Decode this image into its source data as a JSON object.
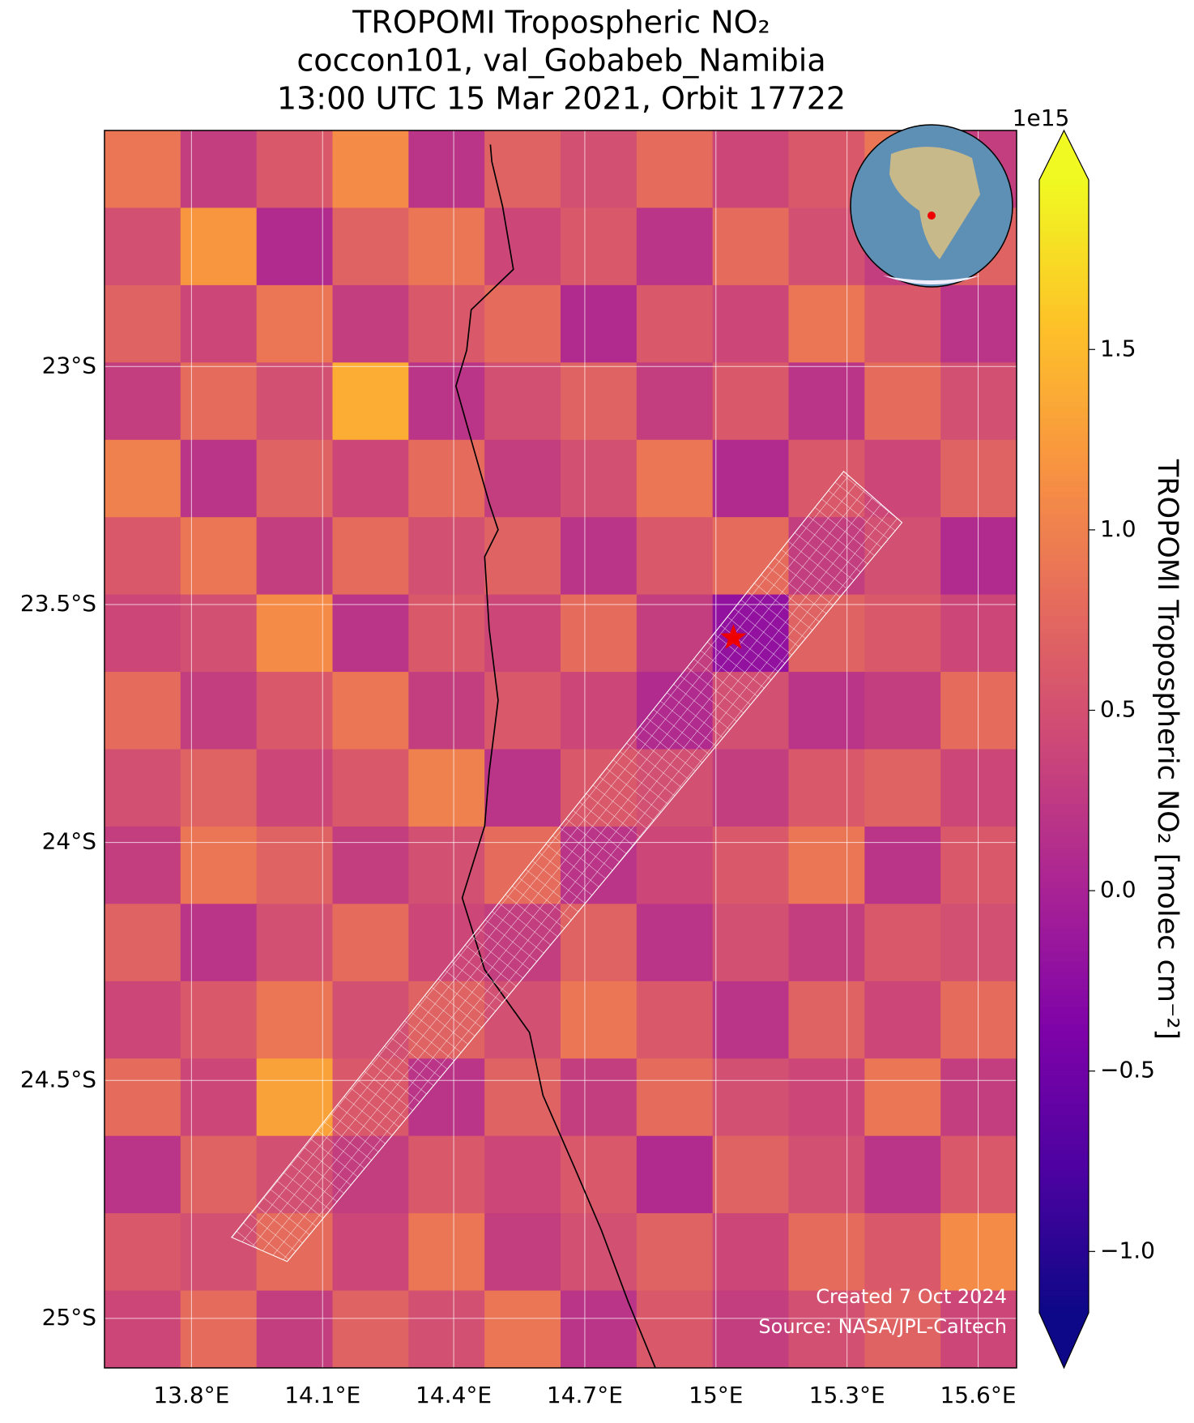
{
  "chart_data": {
    "type": "map",
    "title_lines": [
      "TROPOMI Tropospheric NO₂",
      "coccon101, val_Gobabeb_Namibia",
      "13:00 UTC 15 Mar 2021, Orbit 17722"
    ],
    "xlim": [
      13.601,
      15.688
    ],
    "ylim": [
      -22.504,
      -25.104
    ],
    "xticks": [
      {
        "value": 13.8,
        "label": "13.8°E"
      },
      {
        "value": 14.1,
        "label": "14.1°E"
      },
      {
        "value": 14.4,
        "label": "14.4°E"
      },
      {
        "value": 14.7,
        "label": "14.7°E"
      },
      {
        "value": 15,
        "label": "15°E"
      },
      {
        "value": 15.3,
        "label": "15.3°E"
      },
      {
        "value": 15.6,
        "label": "15.6°E"
      }
    ],
    "yticks": [
      {
        "value": -23,
        "label": "23°S"
      },
      {
        "value": -23.5,
        "label": "23.5°S"
      },
      {
        "value": -24,
        "label": "24°S"
      },
      {
        "value": -24.5,
        "label": "24.5°S"
      },
      {
        "value": -25,
        "label": "25°S"
      }
    ],
    "grid": true,
    "colorbar_label": "TROPOMI Tropospheric NO₂ [molec cm⁻²]",
    "colorbar_scale": "1e15",
    "clim": [
      -1.17,
      1.97
    ],
    "cticks": [
      {
        "value": -1,
        "label": "−1.0"
      },
      {
        "value": -0.5,
        "label": "−0.5"
      },
      {
        "value": 0,
        "label": "0.0"
      },
      0.5,
      {
        "value": 1,
        "label": "1.0"
      },
      1.5
    ],
    "colors": [
      "#0d0887",
      "#4c02a1",
      "#7e03a8",
      "#a92395",
      "#cc4778",
      "#e56b5d",
      "#f89441",
      "#fdc328",
      "#f0f921"
    ],
    "grid_values": [
      [
        0.9,
        0.3,
        0.6,
        1.1,
        0.2,
        0.7,
        0.5,
        0.8,
        0.4,
        0.6,
        0.9,
        0.3
      ],
      [
        0.5,
        1.2,
        0.1,
        0.7,
        0.9,
        0.4,
        0.6,
        0.2,
        0.8,
        0.5,
        0.3,
        0.7
      ],
      [
        0.7,
        0.4,
        0.9,
        0.3,
        0.6,
        0.8,
        0.1,
        0.6,
        0.4,
        0.9,
        0.6,
        0.2
      ],
      [
        0.3,
        0.8,
        0.5,
        1.4,
        0.2,
        0.5,
        0.7,
        0.3,
        0.6,
        0.2,
        0.8,
        0.5
      ],
      [
        1.0,
        0.2,
        0.7,
        0.4,
        0.8,
        0.3,
        0.5,
        0.9,
        0.1,
        0.6,
        0.4,
        0.7
      ],
      [
        0.6,
        0.9,
        0.3,
        0.8,
        0.5,
        0.7,
        0.2,
        0.6,
        0.8,
        0.3,
        0.5,
        0.1
      ],
      [
        0.4,
        0.5,
        1.1,
        0.2,
        0.6,
        0.4,
        0.8,
        0.3,
        -0.2,
        0.7,
        0.6,
        0.4
      ],
      [
        0.8,
        0.3,
        0.6,
        0.9,
        0.3,
        0.6,
        0.4,
        0.1,
        0.5,
        0.2,
        0.3,
        0.8
      ],
      [
        0.5,
        0.7,
        0.4,
        0.6,
        1.0,
        0.2,
        0.6,
        0.5,
        0.3,
        0.6,
        0.7,
        0.4
      ],
      [
        0.3,
        0.9,
        0.7,
        0.3,
        0.5,
        0.8,
        0.2,
        0.4,
        0.6,
        0.9,
        0.2,
        0.6
      ],
      [
        0.7,
        0.2,
        0.5,
        0.8,
        0.4,
        0.3,
        0.7,
        0.2,
        0.5,
        0.3,
        0.6,
        0.5
      ],
      [
        0.4,
        0.6,
        0.9,
        0.5,
        0.7,
        0.5,
        0.9,
        0.6,
        0.2,
        0.7,
        0.4,
        0.8
      ],
      [
        0.8,
        0.4,
        1.3,
        0.6,
        0.2,
        0.7,
        0.3,
        0.8,
        0.5,
        0.4,
        0.9,
        0.3
      ],
      [
        0.2,
        0.7,
        0.5,
        0.3,
        0.6,
        0.4,
        0.6,
        0.1,
        0.7,
        0.5,
        0.2,
        0.6
      ],
      [
        0.6,
        0.5,
        0.8,
        0.4,
        0.9,
        0.3,
        0.5,
        0.7,
        0.4,
        0.8,
        0.6,
        1.1
      ],
      [
        0.4,
        0.8,
        0.3,
        0.7,
        0.5,
        0.9,
        0.2,
        0.6,
        0.3,
        0.5,
        0.7,
        0.4
      ]
    ],
    "site": {
      "lon": 15.04,
      "lat": -23.57
    },
    "credits": [
      "Created 7 Oct 2024",
      "Source: NASA/JPL-Caltech"
    ]
  }
}
